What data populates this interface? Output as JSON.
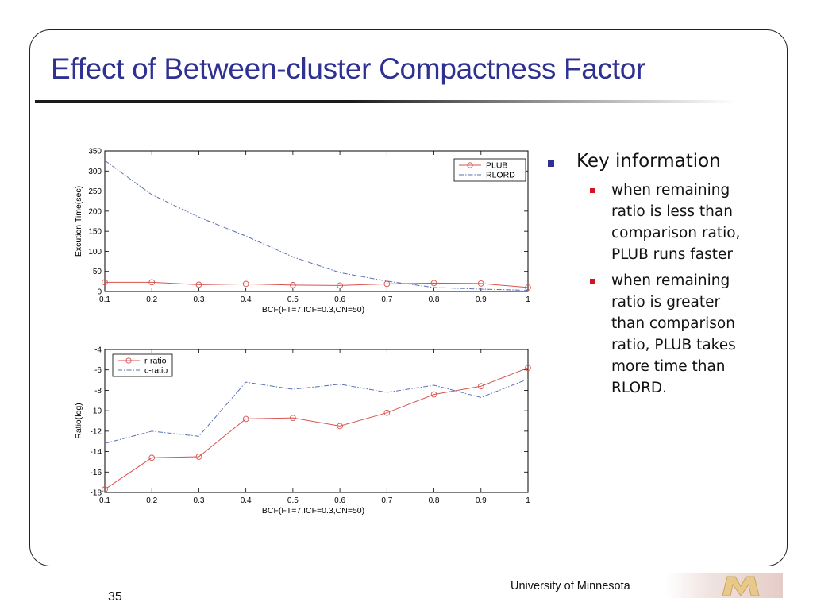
{
  "slide": {
    "title": "Effect of Between-cluster Compactness Factor",
    "number": "35",
    "footer": "University of Minnesota"
  },
  "bullets": {
    "main": "Key information",
    "sub": [
      {
        "lines": [
          "when remaining",
          "ratio is less than",
          "comparison ratio,",
          "PLUB runs faster"
        ]
      },
      {
        "lines": [
          "when remaining",
          "ratio is greater",
          "than comparison",
          "ratio, PLUB takes",
          "more time than",
          "RLORD."
        ]
      }
    ]
  },
  "colors": {
    "title": "#2e3192",
    "series_red": "#d9534f",
    "series_blue": "#5a6fb5",
    "bullet_main": "#2e3192",
    "bullet_sub": "#d2141e"
  },
  "chart_data": [
    {
      "type": "line",
      "title": "",
      "xlabel": "BCF(FT=7,ICF=0.3,CN=50)",
      "ylabel": "Excution Time(sec)",
      "xlim": [
        0.1,
        1
      ],
      "ylim": [
        0,
        350
      ],
      "x_ticks": [
        "0.1",
        "0.2",
        "0.3",
        "0.4",
        "0.5",
        "0.6",
        "0.7",
        "0.8",
        "0.9",
        "1"
      ],
      "y_ticks": [
        "0",
        "50",
        "100",
        "150",
        "200",
        "250",
        "300",
        "350"
      ],
      "legend": "top-right",
      "x": [
        0.1,
        0.2,
        0.3,
        0.4,
        0.5,
        0.6,
        0.7,
        0.8,
        0.9,
        1.0
      ],
      "series": [
        {
          "name": "PLUB",
          "style": "solid-circle",
          "color": "#d9534f",
          "values": [
            23,
            23,
            17,
            19,
            16,
            15,
            19,
            21,
            20,
            10
          ]
        },
        {
          "name": "RLORD",
          "style": "dashdot",
          "color": "#5a6fb5",
          "values": [
            326,
            241,
            185,
            138,
            86,
            47,
            26,
            10,
            6,
            3
          ]
        }
      ]
    },
    {
      "type": "line",
      "title": "",
      "xlabel": "BCF(FT=7,ICF=0.3,CN=50)",
      "ylabel": "Ratio(log)",
      "xlim": [
        0.1,
        1
      ],
      "ylim": [
        -18,
        -4
      ],
      "x_ticks": [
        "0.1",
        "0.2",
        "0.3",
        "0.4",
        "0.5",
        "0.6",
        "0.7",
        "0.8",
        "0.9",
        "1"
      ],
      "y_ticks": [
        "-18",
        "-16",
        "-14",
        "-12",
        "-10",
        "-8",
        "-6",
        "-4"
      ],
      "legend": "top-left",
      "x": [
        0.1,
        0.2,
        0.3,
        0.4,
        0.5,
        0.6,
        0.7,
        0.8,
        0.9,
        1.0
      ],
      "series": [
        {
          "name": "r-ratio",
          "style": "solid-circle",
          "color": "#d9534f",
          "values": [
            -17.7,
            -14.6,
            -14.5,
            -10.8,
            -10.7,
            -11.5,
            -10.2,
            -8.4,
            -7.6,
            -5.8
          ]
        },
        {
          "name": "c-ratio",
          "style": "dashdot",
          "color": "#5a6fb5",
          "values": [
            -13.2,
            -12.0,
            -12.5,
            -7.2,
            -7.9,
            -7.4,
            -8.2,
            -7.5,
            -8.7,
            -6.9
          ]
        }
      ]
    }
  ]
}
